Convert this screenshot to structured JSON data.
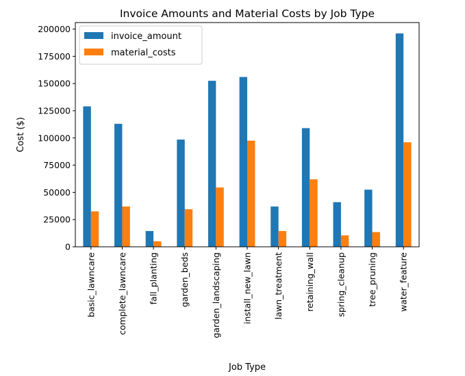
{
  "chart_data": {
    "type": "bar",
    "title": "Invoice Amounts and Material Costs by Job Type",
    "xlabel": "Job Type",
    "ylabel": "Cost ($)",
    "ylim": [
      0,
      206000
    ],
    "yticks": [
      0,
      25000,
      50000,
      75000,
      100000,
      125000,
      150000,
      175000,
      200000
    ],
    "ytick_labels": [
      "0",
      "25000",
      "50000",
      "75000",
      "100000",
      "125000",
      "150000",
      "175000",
      "200000"
    ],
    "categories": [
      "basic_lawncare",
      "complete_lawncare",
      "fall_planting",
      "garden_beds",
      "garden_landscaping",
      "install_new_lawn",
      "lawn_treatment",
      "retaining_wall",
      "spring_cleanup",
      "tree_pruning",
      "water_feature"
    ],
    "series": [
      {
        "name": "invoice_amount",
        "color": "#1f77b4",
        "values": [
          129000,
          113000,
          14500,
          98500,
          152500,
          156000,
          37000,
          109000,
          41000,
          52500,
          196000
        ]
      },
      {
        "name": "material_costs",
        "color": "#ff7f0e",
        "values": [
          32500,
          37000,
          5000,
          34500,
          54500,
          97500,
          14500,
          62000,
          10500,
          13500,
          96000
        ]
      }
    ],
    "grid": false,
    "legend_position": "upper-left"
  }
}
